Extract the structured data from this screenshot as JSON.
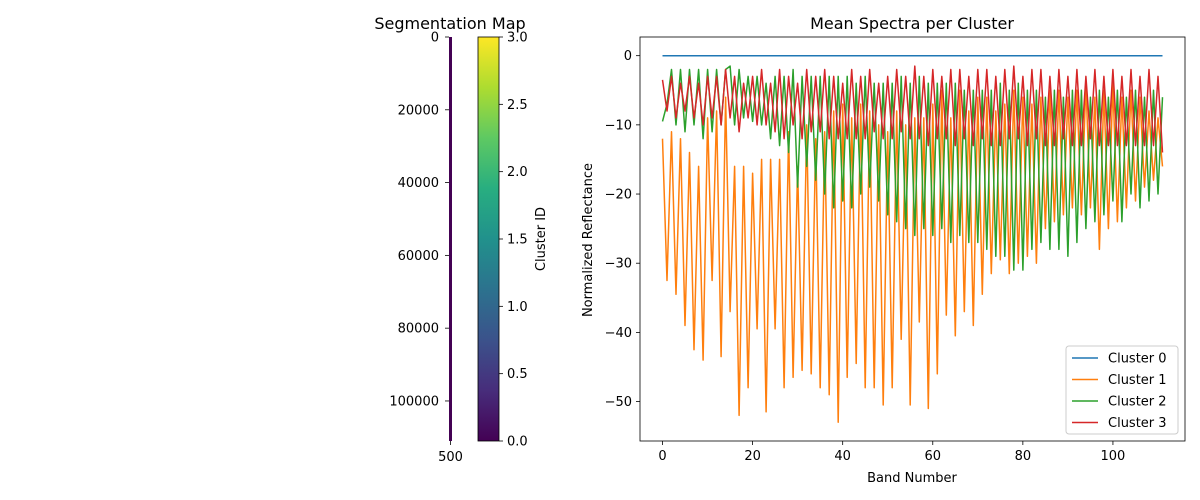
{
  "chart_data": [
    {
      "type": "heatmap",
      "title": "Segmentation Map",
      "y_ticks": [
        0,
        20000,
        40000,
        60000,
        80000,
        100000
      ],
      "y_tick_labels": [
        "0",
        "20000",
        "40000",
        "60000",
        "80000",
        "100000"
      ],
      "ylim": [
        111000,
        0
      ],
      "x_tick_label": "500",
      "colormap": "viridis",
      "colors": {
        "strip": "#440154"
      },
      "colorbar": {
        "label": "Cluster ID",
        "range": [
          0,
          3
        ],
        "ticks": [
          0.0,
          0.5,
          1.0,
          1.5,
          2.0,
          2.5,
          3.0
        ],
        "tick_labels": [
          "0.0",
          "0.5",
          "1.0",
          "1.5",
          "2.0",
          "2.5",
          "3.0"
        ],
        "stops": [
          "#440154",
          "#472d7b",
          "#3b528b",
          "#2c728e",
          "#21918c",
          "#28ae80",
          "#5ec962",
          "#addc30",
          "#fde725"
        ]
      }
    },
    {
      "type": "line",
      "title": "Mean Spectra per Cluster",
      "xlabel": "Band Number",
      "ylabel": "Normalized Reflectance",
      "xlim": [
        -5,
        116
      ],
      "ylim": [
        -55.7,
        2.7
      ],
      "x_ticks": [
        0,
        20,
        40,
        60,
        80,
        100
      ],
      "y_ticks": [
        0,
        -10,
        -20,
        -30,
        -40,
        -50
      ],
      "legend": "lower-right",
      "series": [
        {
          "name": "Cluster 0",
          "color": "#1f77b4",
          "values": [
            0,
            0,
            0,
            0,
            0,
            0,
            0,
            0,
            0,
            0,
            0,
            0,
            0,
            0,
            0,
            0,
            0,
            0,
            0,
            0,
            0,
            0,
            0,
            0,
            0,
            0,
            0,
            0,
            0,
            0,
            0,
            0,
            0,
            0,
            0,
            0,
            0,
            0,
            0,
            0,
            0,
            0,
            0,
            0,
            0,
            0,
            0,
            0,
            0,
            0,
            0,
            0,
            0,
            0,
            0,
            0,
            0,
            0,
            0,
            0,
            0,
            0,
            0,
            0,
            0,
            0,
            0,
            0,
            0,
            0,
            0,
            0,
            0,
            0,
            0,
            0,
            0,
            0,
            0,
            0,
            0,
            0,
            0,
            0,
            0,
            0,
            0,
            0,
            0,
            0,
            0,
            0,
            0,
            0,
            0,
            0,
            0,
            0,
            0,
            0,
            0,
            0,
            0,
            0,
            0,
            0,
            0,
            0,
            0,
            0,
            0,
            0
          ]
        },
        {
          "name": "Cluster 1",
          "color": "#ff7f0e",
          "values": [
            -12,
            -32.5,
            -11,
            -34.5,
            -12,
            -39,
            -14,
            -42.5,
            -16,
            -44,
            -9,
            -32.5,
            -8,
            -43.5,
            -6,
            -37,
            -16,
            -52,
            -16,
            -48,
            -17,
            -39.5,
            -15,
            -51.5,
            -15,
            -39.5,
            -15,
            -48,
            -11,
            -46.5,
            -16,
            -45.5,
            -10,
            -46,
            -12,
            -48,
            -11,
            -49,
            -8,
            -53,
            -7,
            -46.5,
            -9,
            -44.5,
            -7,
            -48,
            -8,
            -48,
            -10,
            -50.5,
            -11,
            -48,
            -8,
            -41,
            -10,
            -50.5,
            -9,
            -38.5,
            -9,
            -51,
            -7,
            -46,
            -5,
            -37.5,
            -9,
            -40.5,
            -5,
            -37,
            -8,
            -39,
            -6,
            -34.5,
            -6,
            -31.5,
            -8,
            -29.5,
            -7,
            -31.5,
            -5,
            -30,
            -6,
            -29,
            -7,
            -30,
            -6,
            -25,
            -5,
            -24,
            -5,
            -23,
            -6,
            -22,
            -5,
            -23,
            -4,
            -22,
            -6,
            -28,
            -5,
            -25,
            -4,
            -24,
            -6,
            -22,
            -5,
            -21,
            -6,
            -19,
            -8,
            -18,
            -9,
            -16
          ]
        },
        {
          "name": "Cluster 2",
          "color": "#2ca02c",
          "values": [
            -9.5,
            -7,
            -2,
            -10,
            -2,
            -11,
            -2,
            -10,
            -2,
            -12,
            -2,
            -11,
            -2,
            -10,
            -2,
            -1.5,
            -10,
            -2,
            -9,
            -3,
            -9.5,
            -3,
            -10,
            -4,
            -12,
            -3,
            -13,
            -3,
            -14,
            -2,
            -19,
            -3,
            -16,
            -3,
            -18,
            -3,
            -20,
            -3,
            -22,
            -3,
            -21,
            -3,
            -22,
            -4,
            -20,
            -3,
            -19,
            -4,
            -21,
            -4,
            -23,
            -4,
            -24,
            -3,
            -25,
            -4,
            -26,
            -3,
            -25,
            -4,
            -26,
            -4,
            -25,
            -4,
            -27,
            -4,
            -26,
            -5,
            -27,
            -5,
            -27,
            -5,
            -28,
            -5,
            -29,
            -4,
            -29,
            -5,
            -31,
            -4,
            -31,
            -5,
            -28,
            -5,
            -27,
            -6,
            -28,
            -5,
            -28,
            -6,
            -29,
            -5,
            -27,
            -5,
            -25,
            -6,
            -24,
            -5,
            -23,
            -6,
            -21,
            -5,
            -24,
            -6,
            -20,
            -5,
            -22,
            -6,
            -21,
            -5,
            -20,
            -6
          ]
        },
        {
          "name": "Cluster 3",
          "color": "#d62728",
          "values": [
            -3.5,
            -8,
            -3,
            -9,
            -4,
            -8,
            -3,
            -9,
            -4,
            -10,
            -3,
            -9,
            -3,
            -10,
            -2,
            -9,
            -3,
            -11,
            -4,
            -9,
            -3,
            -10,
            -2,
            -10,
            -4,
            -11,
            -2,
            -12,
            -3,
            -10,
            -4,
            -12,
            -2,
            -11,
            -3,
            -11,
            -2,
            -12,
            -3,
            -12,
            -4,
            -12,
            -2,
            -12,
            -3,
            -12,
            -2,
            -11,
            -4,
            -12,
            -3,
            -12,
            -2,
            -11,
            -3,
            -12,
            -1.5,
            -12,
            -3,
            -13,
            -2,
            -12,
            -3,
            -12,
            -2,
            -13,
            -2,
            -12,
            -3,
            -13,
            -2,
            -12,
            -2,
            -13,
            -3,
            -13,
            -2,
            -12,
            -1.5,
            -12,
            -3,
            -13,
            -2,
            -12,
            -2,
            -13,
            -3,
            -13,
            -2,
            -12,
            -3,
            -13,
            -2,
            -13,
            -3,
            -12,
            -2,
            -13,
            -3,
            -13,
            -2,
            -13,
            -3,
            -13,
            -2,
            -13,
            -3,
            -13,
            -2,
            -13,
            -3,
            -14
          ]
        }
      ]
    }
  ]
}
